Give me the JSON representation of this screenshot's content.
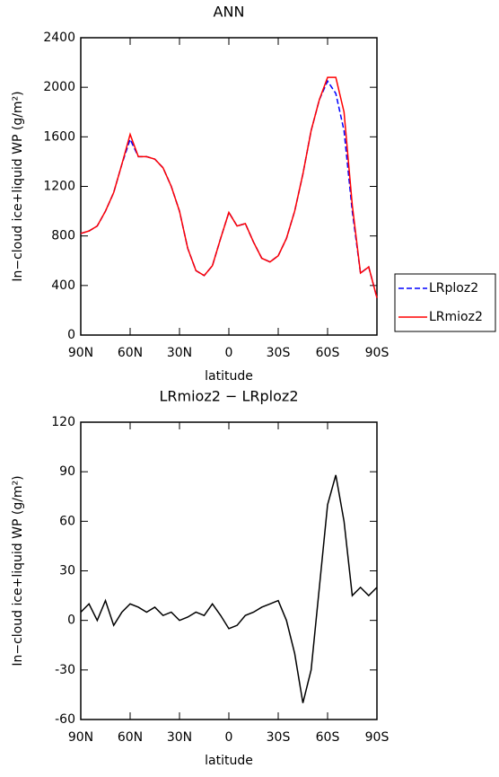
{
  "chart_data": [
    {
      "type": "line",
      "title": "ANN",
      "x_label": "latitude",
      "y_label": "In−cloud ice+liquid WP (g/m²)",
      "x": [
        90,
        85,
        80,
        75,
        70,
        65,
        60,
        55,
        50,
        45,
        40,
        35,
        30,
        25,
        20,
        15,
        10,
        5,
        0,
        -5,
        -10,
        -15,
        -20,
        -25,
        -30,
        -35,
        -40,
        -45,
        -50,
        -55,
        -60,
        -65,
        -70,
        -75,
        -80,
        -85,
        -90
      ],
      "series": [
        {
          "name": "LRploz2",
          "color": "#0000ff",
          "style": "dashed",
          "values": [
            820,
            840,
            880,
            1000,
            1150,
            1380,
            1580,
            1440,
            1440,
            1420,
            1350,
            1200,
            1000,
            700,
            520,
            480,
            560,
            780,
            990,
            880,
            900,
            750,
            620,
            590,
            640,
            780,
            1000,
            1300,
            1650,
            1900,
            2050,
            1950,
            1650,
            1000,
            500,
            550,
            300
          ]
        },
        {
          "name": "LRmioz2",
          "color": "#ff0000",
          "style": "solid",
          "values": [
            820,
            840,
            880,
            1000,
            1150,
            1380,
            1620,
            1440,
            1440,
            1420,
            1350,
            1200,
            1000,
            700,
            520,
            480,
            560,
            780,
            990,
            880,
            900,
            750,
            620,
            590,
            640,
            780,
            1000,
            1300,
            1650,
            1900,
            2080,
            2080,
            1800,
            1050,
            500,
            550,
            300
          ]
        }
      ],
      "xlim": [
        90,
        -90
      ],
      "ylim": [
        0,
        2400
      ],
      "xticks": [
        {
          "value": 90,
          "label": "90N"
        },
        {
          "value": 60,
          "label": "60N"
        },
        {
          "value": 30,
          "label": "30N"
        },
        0,
        {
          "value": -30,
          "label": "30S"
        },
        {
          "value": -60,
          "label": "60S"
        },
        {
          "value": -90,
          "label": "90S"
        }
      ],
      "yticks": [
        0,
        400,
        800,
        1200,
        1600,
        2000,
        2400
      ],
      "legend": "right"
    },
    {
      "type": "line",
      "title": "LRmioz2 − LRploz2",
      "x_label": "latitude",
      "y_label": "In−cloud ice+liquid WP (g/m²)",
      "x": [
        90,
        85,
        80,
        75,
        70,
        65,
        60,
        55,
        50,
        45,
        40,
        35,
        30,
        25,
        20,
        15,
        10,
        5,
        0,
        -5,
        -10,
        -15,
        -20,
        -25,
        -30,
        -35,
        -40,
        -45,
        -50,
        -55,
        -60,
        -65,
        -70,
        -75,
        -80,
        -85,
        -90
      ],
      "series": [
        {
          "color": "#000000",
          "style": "solid",
          "values": [
            5,
            10,
            0,
            12,
            -3,
            5,
            10,
            8,
            5,
            8,
            3,
            5,
            0,
            2,
            5,
            3,
            10,
            3,
            -5,
            -3,
            3,
            5,
            8,
            10,
            12,
            0,
            -20,
            -50,
            -30,
            20,
            70,
            88,
            60,
            15,
            20,
            15,
            20
          ]
        }
      ],
      "xlim": [
        90,
        -90
      ],
      "ylim": [
        -60,
        120
      ],
      "xticks": [
        {
          "value": 90,
          "label": "90N"
        },
        {
          "value": 60,
          "label": "60N"
        },
        {
          "value": 30,
          "label": "30N"
        },
        0,
        {
          "value": -30,
          "label": "30S"
        },
        {
          "value": -60,
          "label": "60S"
        },
        {
          "value": -90,
          "label": "90S"
        }
      ],
      "yticks": [
        -60,
        -30,
        0,
        30,
        60,
        90,
        120
      ]
    }
  ]
}
